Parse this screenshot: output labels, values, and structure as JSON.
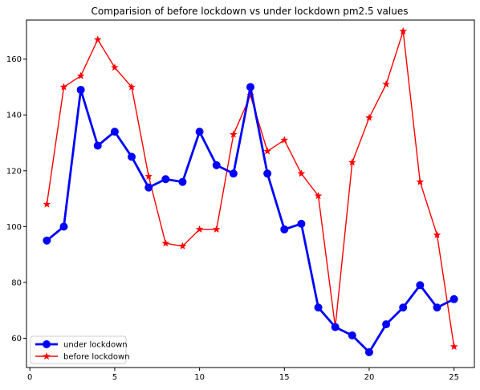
{
  "chart_data": {
    "type": "line",
    "title": "Comparision of before lockdown vs under lockdown pm2.5 values",
    "xlabel": "",
    "ylabel": "",
    "xlim": [
      -0.2,
      26.2
    ],
    "ylim": [
      49.5,
      174
    ],
    "xticks": [
      0,
      5,
      10,
      15,
      20,
      25
    ],
    "yticks": [
      60,
      80,
      100,
      120,
      140,
      160
    ],
    "grid": false,
    "legend_position": "lower-left",
    "x": [
      1,
      2,
      3,
      4,
      5,
      6,
      7,
      8,
      9,
      10,
      11,
      12,
      13,
      14,
      15,
      16,
      17,
      18,
      19,
      20,
      21,
      22,
      23,
      24,
      25
    ],
    "series": [
      {
        "name": "under lockdown",
        "color": "#0000ff",
        "marker": "circle",
        "values": [
          95,
          100,
          149,
          129,
          134,
          125,
          114,
          117,
          116,
          134,
          122,
          119,
          150,
          119,
          99,
          101,
          71,
          64,
          61,
          55,
          65,
          71,
          79,
          71,
          74
        ]
      },
      {
        "name": "before lockdown",
        "color": "#ff0000",
        "marker": "star",
        "values": [
          108,
          150,
          154,
          167,
          157,
          150,
          118,
          94,
          93,
          99,
          99,
          133,
          147,
          127,
          131,
          119,
          111,
          64,
          123,
          139,
          151,
          170,
          116,
          97,
          57
        ]
      }
    ]
  }
}
